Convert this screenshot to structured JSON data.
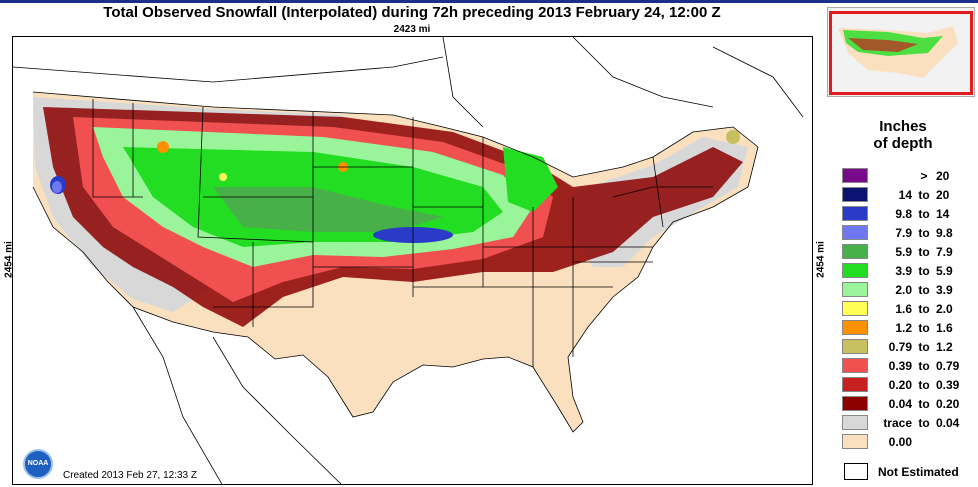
{
  "header": {
    "title": "Total Observed Snowfall (Interpolated) during 72h preceding 2013 February 24, 12:00 Z",
    "horizontal_scale": "2423 mi",
    "vertical_scale": "2454 mi"
  },
  "map": {
    "created": "Created 2013 Feb 27, 12:33 Z",
    "logo_text": "NOAA"
  },
  "legend": {
    "title_line1": "Inches",
    "title_line2": "of depth",
    "items": [
      {
        "lo": "",
        "to": ">",
        "hi": "20",
        "color": "#7a0a8c"
      },
      {
        "lo": "14",
        "to": "to",
        "hi": "20",
        "color": "#0a1470"
      },
      {
        "lo": "9.8",
        "to": "to",
        "hi": "14",
        "color": "#2a3bc8"
      },
      {
        "lo": "7.9",
        "to": "to",
        "hi": "9.8",
        "color": "#6e78f0"
      },
      {
        "lo": "5.9",
        "to": "to",
        "hi": "7.9",
        "color": "#48b048"
      },
      {
        "lo": "3.9",
        "to": "to",
        "hi": "5.9",
        "color": "#22dd22"
      },
      {
        "lo": "2.0",
        "to": "to",
        "hi": "3.9",
        "color": "#9af59a"
      },
      {
        "lo": "1.6",
        "to": "to",
        "hi": "2.0",
        "color": "#ffff55"
      },
      {
        "lo": "1.2",
        "to": "to",
        "hi": "1.6",
        "color": "#ff9000"
      },
      {
        "lo": "0.79",
        "to": "to",
        "hi": "1.2",
        "color": "#c8c060"
      },
      {
        "lo": "0.39",
        "to": "to",
        "hi": "0.79",
        "color": "#f05050"
      },
      {
        "lo": "0.20",
        "to": "to",
        "hi": "0.39",
        "color": "#c82020"
      },
      {
        "lo": "0.04",
        "to": "to",
        "hi": "0.20",
        "color": "#8c0000"
      },
      {
        "lo": "trace",
        "to": "to",
        "hi": "0.04",
        "color": "#d8d8d8"
      },
      {
        "lo": "0.00",
        "to": "",
        "hi": "",
        "color": "#fbe0c0"
      }
    ],
    "not_estimated": "Not Estimated"
  }
}
